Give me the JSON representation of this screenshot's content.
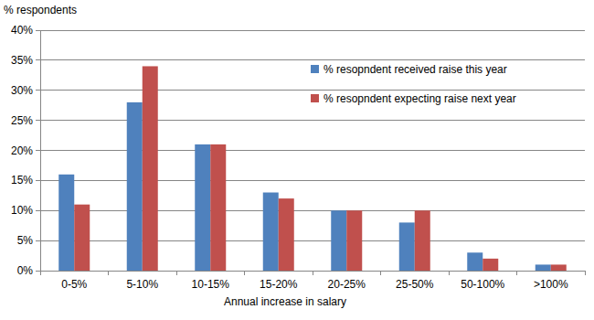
{
  "chart_data": {
    "type": "bar",
    "y_label": "% respondents",
    "x_label": "Annual increase in salary",
    "categories": [
      "0-5%",
      "5-10%",
      "10-15%",
      "15-20%",
      "20-25%",
      "25-50%",
      "50-100%",
      ">100%"
    ],
    "series": [
      {
        "name": "% resopndent received raise this year",
        "color": "#4f81bd",
        "values": [
          16,
          28,
          21,
          13,
          10,
          8,
          3,
          1
        ]
      },
      {
        "name": "% resopndent expecting raise next year",
        "color": "#c0504d",
        "values": [
          11,
          34,
          21,
          12,
          10,
          10,
          2,
          1
        ]
      }
    ],
    "ylim": [
      0,
      40
    ],
    "yticks": [
      {
        "value": 0,
        "label": "0%"
      },
      {
        "value": 5,
        "label": "5%"
      },
      {
        "value": 10,
        "label": "10%"
      },
      {
        "value": 15,
        "label": "15%"
      },
      {
        "value": 20,
        "label": "20%"
      },
      {
        "value": 25,
        "label": "25%"
      },
      {
        "value": 30,
        "label": "30%"
      },
      {
        "value": 35,
        "label": "35%"
      },
      {
        "value": 40,
        "label": "40%"
      }
    ],
    "grid": true,
    "legend": "upper right"
  }
}
